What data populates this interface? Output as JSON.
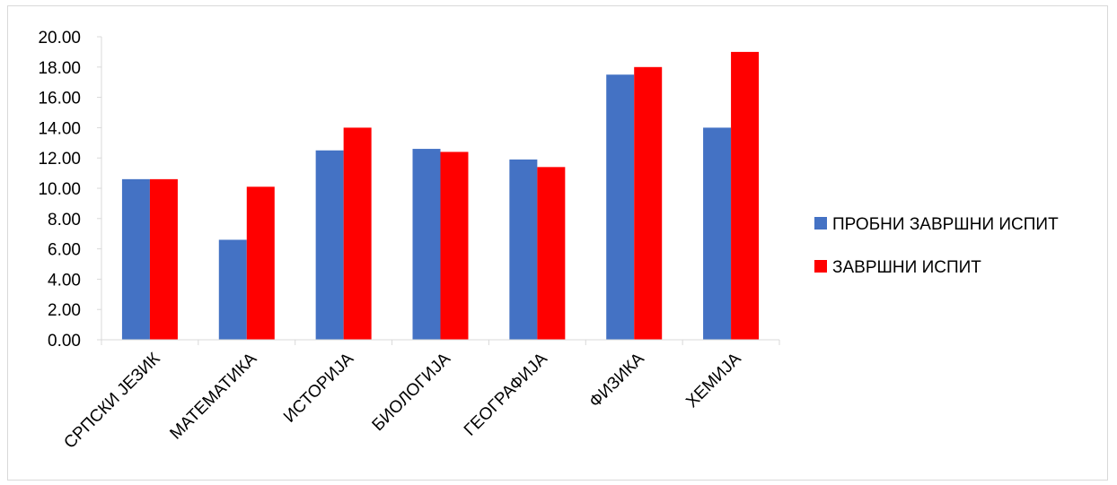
{
  "chart_data": {
    "type": "bar",
    "categories": [
      "СРПСКИ ЈЕЗИК",
      "МАТЕМАТИКА",
      "ИСТОРИЈА",
      "БИОЛОГИЈА",
      "ГЕОГРАФИЈА",
      "ФИЗИКА",
      "ХЕМИЈА"
    ],
    "series": [
      {
        "name": "ПРОБНИ ЗАВРШНИ ИСПИТ",
        "color": "#4472c4",
        "values": [
          10.6,
          6.6,
          12.5,
          12.6,
          11.9,
          17.5,
          14.0
        ]
      },
      {
        "name": "ЗАВРШНИ ИСПИТ",
        "color": "#ff0000",
        "values": [
          10.6,
          10.1,
          14.0,
          12.4,
          11.4,
          18.0,
          19.0
        ]
      }
    ],
    "title": "",
    "xlabel": "",
    "ylabel": "",
    "ylim": [
      0,
      20
    ],
    "ytick_step": 2,
    "ytick_decimals": 2,
    "grid": false,
    "legend_position": "right"
  }
}
